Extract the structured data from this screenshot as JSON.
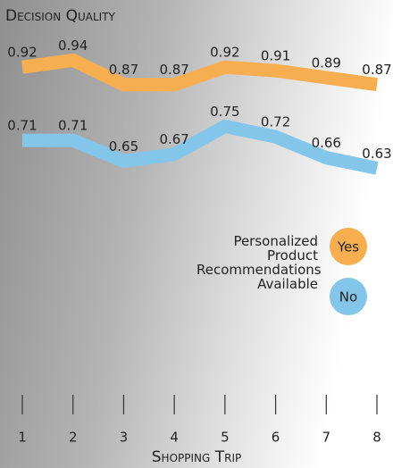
{
  "chart_data": {
    "type": "line",
    "title": "Decision Quality",
    "x_label": "Shopping Trip",
    "legend_title": "Personalized Product Recommendations Available",
    "x": [
      1,
      2,
      3,
      4,
      5,
      6,
      7,
      8
    ],
    "xlim": [
      1,
      8
    ],
    "xticks": [
      1,
      2,
      3,
      4,
      5,
      6,
      7,
      8
    ],
    "ylim": [
      0,
      1
    ],
    "series": [
      {
        "name": "Yes",
        "color": "#f6ae50",
        "values": [
          0.92,
          0.94,
          0.87,
          0.87,
          0.92,
          0.91,
          0.89,
          0.87
        ]
      },
      {
        "name": "No",
        "color": "#84c6ea",
        "values": [
          0.71,
          0.71,
          0.65,
          0.67,
          0.75,
          0.72,
          0.66,
          0.63
        ]
      }
    ]
  }
}
